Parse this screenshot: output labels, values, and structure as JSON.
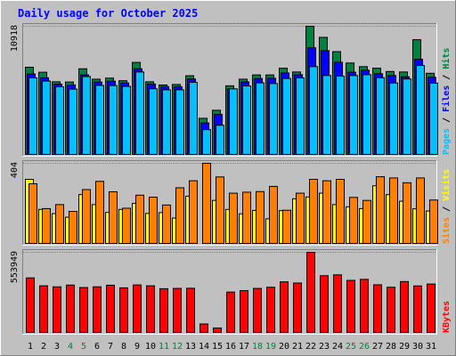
{
  "title": "Daily usage for October 2025",
  "colors": {
    "background": "#c0c0c0",
    "title": "#0000ff",
    "hits": "#008040",
    "files": "#0000ff",
    "pages": "#00c0ff",
    "visits": "#ffff00",
    "sites": "#ff8000",
    "kbytes": "#ff0000",
    "weekend_label": "#008040",
    "weekday_label": "#000000"
  },
  "chart_data": [
    {
      "type": "bar",
      "panel": "hits-files-pages",
      "y_label_max": "10918",
      "ylim": [
        0,
        10918
      ],
      "legend": [
        "Pages",
        "Files",
        "Hits"
      ],
      "categories": [
        "1",
        "2",
        "3",
        "4",
        "5",
        "6",
        "7",
        "8",
        "9",
        "10",
        "11",
        "12",
        "13",
        "14",
        "15",
        "16",
        "17",
        "18",
        "19",
        "20",
        "21",
        "22",
        "23",
        "24",
        "25",
        "26",
        "27",
        "28",
        "29",
        "30",
        "31"
      ],
      "series": [
        {
          "name": "Hits",
          "values": [
            7450,
            7030,
            6220,
            6200,
            7320,
            6440,
            6530,
            6310,
            7860,
            6220,
            5950,
            5990,
            6730,
            3130,
            3810,
            5880,
            6440,
            6800,
            6800,
            7370,
            7050,
            10918,
            9980,
            8770,
            7810,
            7500,
            7370,
            7090,
            7050,
            9780,
            6940
          ]
        },
        {
          "name": "Files",
          "values": [
            6880,
            6560,
            6020,
            5950,
            6800,
            6200,
            6270,
            6120,
            7320,
            6030,
            5810,
            5800,
            6460,
            2740,
            3470,
            5620,
            6210,
            6500,
            6520,
            6970,
            6820,
            9100,
            8850,
            7870,
            7030,
            7200,
            6900,
            6750,
            6640,
            8130,
            6600
          ]
        },
        {
          "name": "Pages",
          "values": [
            6550,
            6280,
            5800,
            5600,
            6660,
            5910,
            5900,
            5830,
            7050,
            5630,
            5540,
            5540,
            6180,
            2170,
            2540,
            5620,
            5870,
            6130,
            6070,
            6500,
            6550,
            7500,
            6750,
            6700,
            6750,
            6820,
            6570,
            6120,
            6460,
            7600,
            6110
          ]
        }
      ]
    },
    {
      "type": "bar",
      "panel": "visits-sites",
      "y_label_max": "404",
      "ylim": [
        0,
        404
      ],
      "legend": [
        "Sites",
        "Visits"
      ],
      "categories": [
        "1",
        "2",
        "3",
        "4",
        "5",
        "6",
        "7",
        "8",
        "9",
        "10",
        "11",
        "12",
        "13",
        "14",
        "15",
        "16",
        "17",
        "18",
        "19",
        "20",
        "21",
        "22",
        "23",
        "24",
        "25",
        "26",
        "27",
        "28",
        "29",
        "30",
        "31"
      ],
      "series": [
        {
          "name": "Visits",
          "values": [
            324,
            174,
            153,
            135,
            248,
            198,
            159,
            174,
            204,
            154,
            158,
            131,
            240,
            0,
            219,
            174,
            152,
            169,
            127,
            168,
            227,
            236,
            255,
            198,
            187,
            178,
            292,
            248,
            215,
            177,
            166
          ]
        },
        {
          "name": "Sites",
          "values": [
            302,
            178,
            198,
            164,
            273,
            314,
            262,
            180,
            245,
            235,
            196,
            282,
            317,
            404,
            336,
            255,
            260,
            263,
            289,
            170,
            255,
            324,
            317,
            324,
            234,
            219,
            337,
            331,
            307,
            331,
            221
          ]
        }
      ]
    },
    {
      "type": "bar",
      "panel": "kbytes",
      "y_label_max": "553949",
      "ylim": [
        0,
        553949
      ],
      "legend": [
        "KBytes"
      ],
      "categories": [
        "1",
        "2",
        "3",
        "4",
        "5",
        "6",
        "7",
        "8",
        "9",
        "10",
        "11",
        "12",
        "13",
        "14",
        "15",
        "16",
        "17",
        "18",
        "19",
        "20",
        "21",
        "22",
        "23",
        "24",
        "25",
        "26",
        "27",
        "28",
        "29",
        "30",
        "31"
      ],
      "series": [
        {
          "name": "KBytes",
          "values": [
            379000,
            325000,
            318000,
            330000,
            313000,
            318000,
            329000,
            311000,
            331000,
            325000,
            305000,
            307000,
            308000,
            64000,
            36000,
            282000,
            292000,
            307000,
            315000,
            352000,
            344000,
            553949,
            394000,
            400000,
            362000,
            369000,
            332000,
            315000,
            354000,
            324000,
            337000
          ]
        }
      ]
    }
  ],
  "x_labels": [
    "1",
    "2",
    "3",
    "4",
    "5",
    "6",
    "7",
    "8",
    "9",
    "10",
    "11",
    "12",
    "13",
    "14",
    "15",
    "16",
    "17",
    "18",
    "19",
    "20",
    "21",
    "22",
    "23",
    "24",
    "25",
    "26",
    "27",
    "28",
    "29",
    "30",
    "31"
  ],
  "weekend_days": [
    4,
    5,
    11,
    12,
    18,
    19,
    25,
    26
  ]
}
